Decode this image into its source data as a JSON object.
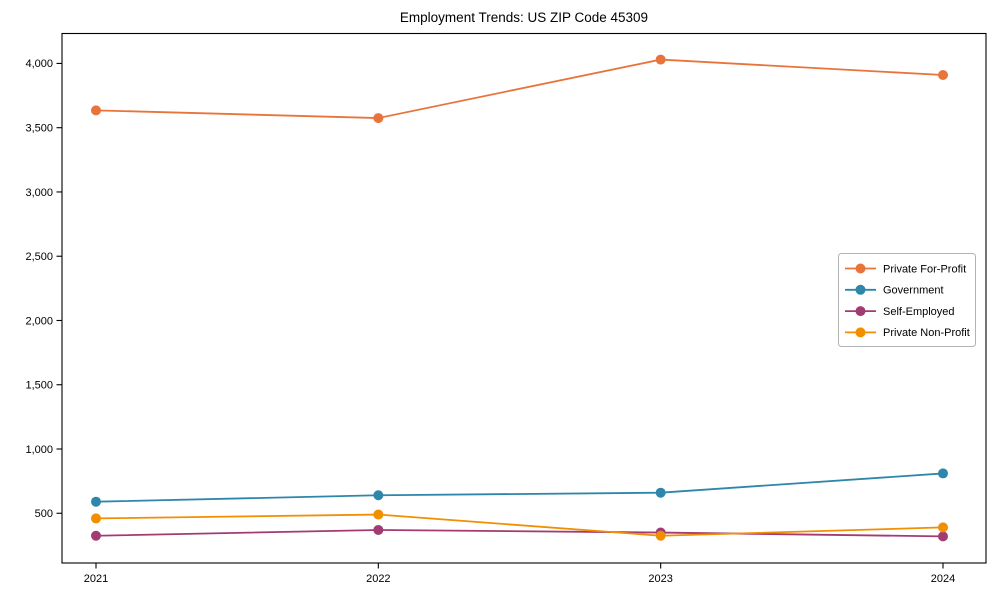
{
  "title": "Employment Trends: US ZIP Code 45309",
  "chart_data": {
    "type": "line",
    "title": "Employment Trends: US ZIP Code 45309",
    "x": [
      2021,
      2022,
      2023,
      2024
    ],
    "xtick_labels": [
      "2021",
      "2022",
      "2023",
      "2024"
    ],
    "yticks": [
      500,
      1000,
      1500,
      2000,
      2500,
      3000,
      3500,
      4000
    ],
    "ytick_labels": [
      "500",
      "1,000",
      "1,500",
      "2,000",
      "2,500",
      "3,000",
      "3,500",
      "4,000"
    ],
    "ylim": [
      113,
      4233
    ],
    "xlabel": "",
    "ylabel": "",
    "grid": false,
    "legend_position": "center-right",
    "background": "#ffffff",
    "axis_color": "#000000",
    "legend_border_color": "#b3b3b3",
    "series": [
      {
        "name": "Private For-Profit",
        "color": "#E8743B",
        "values": [
          3635,
          3575,
          4030,
          3910
        ]
      },
      {
        "name": "Government",
        "color": "#2E86AB",
        "values": [
          590,
          640,
          660,
          810
        ]
      },
      {
        "name": "Self-Employed",
        "color": "#A23B72",
        "values": [
          325,
          370,
          350,
          320
        ]
      },
      {
        "name": "Private Non-Profit",
        "color": "#F18F01",
        "values": [
          460,
          490,
          325,
          390
        ]
      }
    ]
  }
}
